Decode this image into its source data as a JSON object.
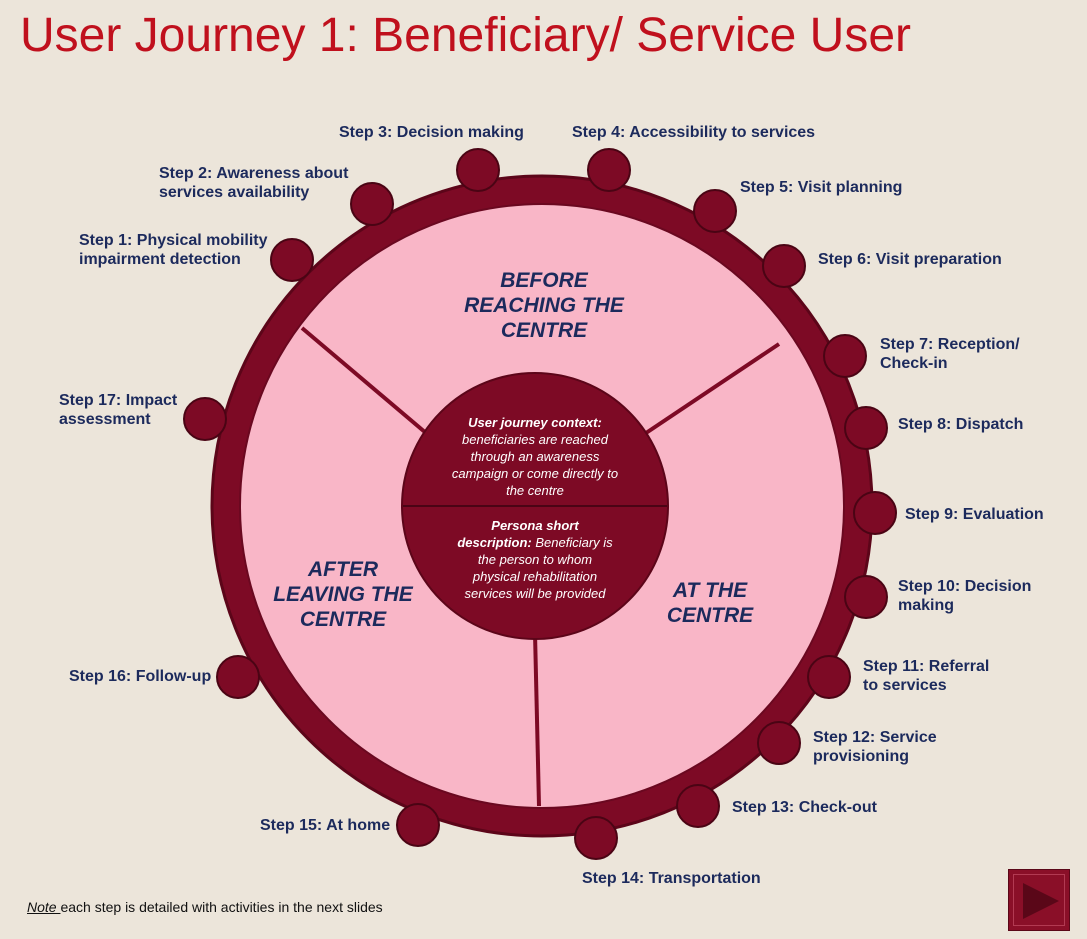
{
  "title": "User Journey 1: Beneficiary/ Service User",
  "phases": {
    "before_line1": "BEFORE",
    "before_line2": "REACHING THE",
    "before_line3": "CENTRE",
    "at_line1": "AT THE",
    "at_line2": "CENTRE",
    "after_line1": "AFTER",
    "after_line2": "LEAVING THE",
    "after_line3": "CENTRE"
  },
  "context": {
    "label": "User journey context:",
    "line1": "beneficiaries are reached",
    "line2": "through an awareness",
    "line3": "campaign or come directly to",
    "line4": "the centre"
  },
  "persona": {
    "label_line1": "Persona short",
    "label_line2": "description:",
    "line2_rest": " Beneficiary is",
    "line3": "the person to whom",
    "line4": "physical rehabilitation",
    "line5": "services will be provided"
  },
  "steps": [
    {
      "line1": "Step 1: Physical mobility",
      "line2": "impairment detection"
    },
    {
      "line1": "Step 2: Awareness about",
      "line2": "services availability"
    },
    {
      "line1": "Step 3: Decision making",
      "line2": ""
    },
    {
      "line1": "Step 4: Accessibility to services",
      "line2": ""
    },
    {
      "line1": "Step 5: Visit planning",
      "line2": ""
    },
    {
      "line1": "Step 6: Visit preparation",
      "line2": ""
    },
    {
      "line1": "Step 7: Reception/",
      "line2": "Check-in"
    },
    {
      "line1": "Step 8: Dispatch",
      "line2": ""
    },
    {
      "line1": "Step 9: Evaluation",
      "line2": ""
    },
    {
      "line1": "Step 10: Decision",
      "line2": "making"
    },
    {
      "line1": "Step 11: Referral",
      "line2": "to services"
    },
    {
      "line1": "Step 12: Service",
      "line2": "provisioning"
    },
    {
      "line1": "Step 13: Check-out",
      "line2": ""
    },
    {
      "line1": "Step 14: Transportation",
      "line2": ""
    },
    {
      "line1": "Step 15: At home",
      "line2": ""
    },
    {
      "line1": "Step 16: Follow-up",
      "line2": ""
    },
    {
      "line1": "Step 17: Impact",
      "line2": "assessment"
    }
  ],
  "note": {
    "prefix": "Note ",
    "text": "each step is detailed with activities in the next slides"
  },
  "colors": {
    "ring": "#7d0a25",
    "inner_fill": "#f9b6c7",
    "text_blue": "#1c2a5c",
    "title_red": "#c0101d"
  },
  "icons": {
    "next": "play-triangle-icon"
  }
}
